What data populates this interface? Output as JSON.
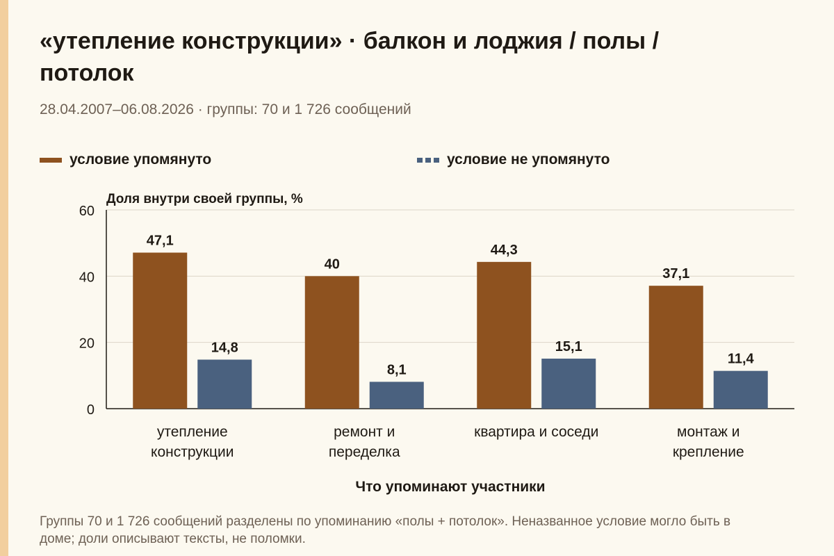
{
  "title": "«утепление конструкции» · балкон и лоджия / полы / потолок",
  "subtitle": "28.04.2007–06.08.2026 · группы: 70 и 1 726 сообщений",
  "footnote": "Группы 70 и 1 726 сообщений разделены по упоминанию «полы + потолок». Неназванное условие могло быть в доме; доли описывают тексты, не поломки.",
  "colors": {
    "primary": "#8e521f",
    "secondary": "#4a617f",
    "accent": "#f2cf9e",
    "background": "#fcf9f0"
  },
  "chart_data": {
    "type": "bar",
    "ylabel": "Доля внутри своей группы, %",
    "xlabel": "Что упоминают участники",
    "ylim": [
      0,
      60
    ],
    "yticks": [
      0,
      20,
      40,
      60
    ],
    "grid": true,
    "legend": "top",
    "categories": [
      [
        "утепление",
        "конструкции"
      ],
      [
        "ремонт и",
        "переделка"
      ],
      [
        "квартира и соседи"
      ],
      [
        "монтаж и",
        "крепление"
      ]
    ],
    "series": [
      {
        "name": "условие упомянуто",
        "color": "#8e521f",
        "values": [
          47.1,
          40,
          44.3,
          37.1
        ],
        "labels": [
          "47,1",
          "40",
          "44,3",
          "37,1"
        ]
      },
      {
        "name": "условие не упомянуто",
        "color": "#4a617f",
        "values": [
          14.8,
          8.1,
          15.1,
          11.4
        ],
        "labels": [
          "14,8",
          "8,1",
          "15,1",
          "11,4"
        ]
      }
    ]
  }
}
